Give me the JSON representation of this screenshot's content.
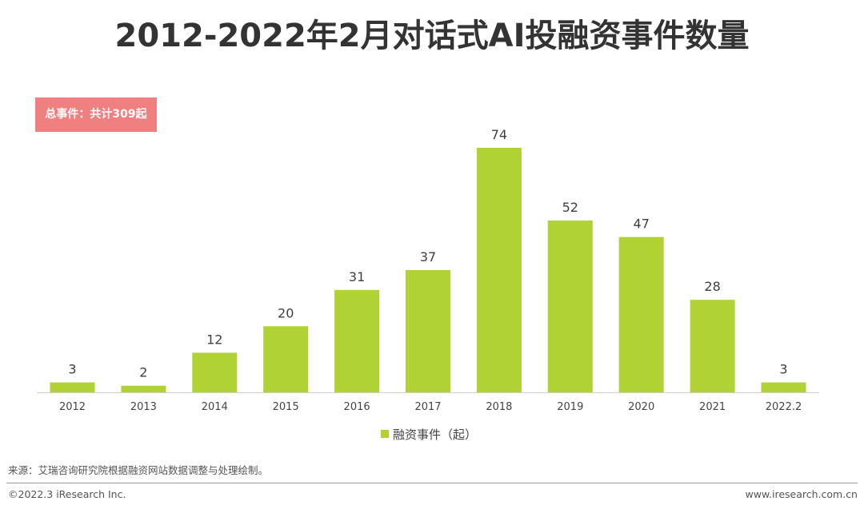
{
  "page": {
    "title": "2012-2022年2月对话式AI投融资事件数量",
    "total_badge": "总事件：共计309起",
    "source": "来源：艾瑞咨询研究院根据融资网站数据调整与处理绘制。",
    "copyright": "©2022.3 iResearch Inc.",
    "website": "www.iresearch.com.cn"
  },
  "colors": {
    "bar": "#b0d235",
    "badge": "#f08080",
    "axis": "#d0d0d0"
  },
  "chart_data": {
    "type": "bar",
    "title": "2012-2022年2月对话式AI投融资事件数量",
    "categories": [
      "2012",
      "2013",
      "2014",
      "2015",
      "2016",
      "2017",
      "2018",
      "2019",
      "2020",
      "2021",
      "2022.2"
    ],
    "series": [
      {
        "name": "融资事件（起）",
        "values": [
          3,
          2,
          12,
          20,
          31,
          37,
          74,
          52,
          47,
          28,
          3
        ]
      }
    ],
    "data_labels": true,
    "legend_position": "bottom-center",
    "grid": false,
    "ylim": [
      0,
      74
    ]
  }
}
